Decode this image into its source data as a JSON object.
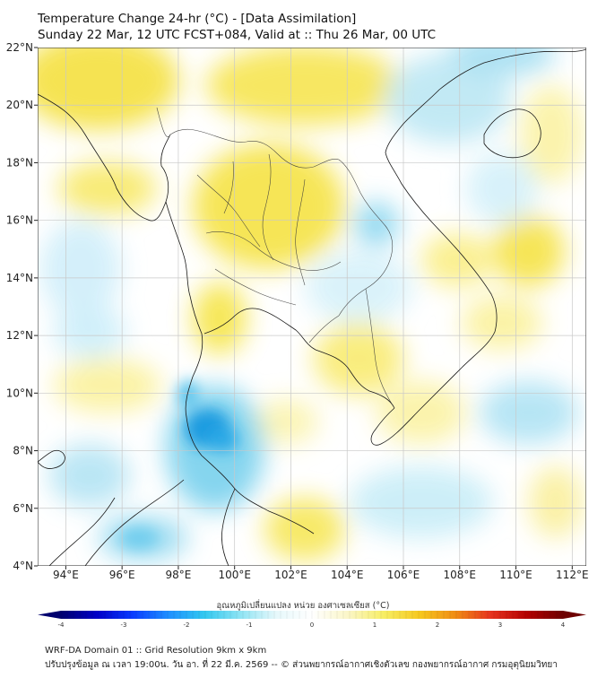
{
  "header": {
    "title_line1": "Temperature Change 24-hr (°C) - [Data Assimilation]",
    "title_line2": "Sunday 22 Mar, 12 UTC FCST+084, Valid at :: Thu 26 Mar, 00 UTC"
  },
  "map": {
    "lat_range": [
      4,
      22
    ],
    "lon_range": [
      93,
      112.5
    ],
    "lat_ticks": [
      "4°N",
      "6°N",
      "8°N",
      "10°N",
      "12°N",
      "14°N",
      "16°N",
      "18°N",
      "20°N",
      "22°N"
    ],
    "lon_ticks": [
      "94°E",
      "96°E",
      "98°E",
      "100°E",
      "102°E",
      "104°E",
      "106°E",
      "108°E",
      "110°E",
      "112°E"
    ],
    "gridlines": true,
    "colors": {
      "background": "#ffffff",
      "warm_light": "#fbf2a0",
      "warm": "#f5e24a",
      "cool_light": "#c8ecf6",
      "cool": "#7fd3ee",
      "cool_strong": "#1e9be0",
      "coastline": "#1a1a1a",
      "grid": "#c8c8c8"
    }
  },
  "colorbar": {
    "title": "อุณหภูมิเปลี่ยนแปลง หน่วย องศาเซลเซียส (°C)",
    "range": [
      -4,
      4
    ],
    "ticks": [
      "-4",
      "-3",
      "-2",
      "-1",
      "0",
      "1",
      "2",
      "3",
      "4"
    ],
    "extend": "both",
    "stops": [
      "#00006e",
      "#0000c8",
      "#0a3cff",
      "#1e90ff",
      "#32c8f0",
      "#8ee4f4",
      "#e6f8fb",
      "#ffffff",
      "#fbf6c8",
      "#f7ee64",
      "#f6c81e",
      "#f08c14",
      "#e6321e",
      "#b40000",
      "#6e0000"
    ]
  },
  "footer": {
    "line1": "WRF-DA Domain 01 :: Grid Resolution 9km x 9km",
    "line2": "ปรับปรุงข้อมูล ณ เวลา 19:00น. วัน อา. ที่ 22 มี.ค. 2569 -- © ส่วนพยากรณ์อากาศเชิงตัวเลข กองพยากรณ์อากาศ กรมอุตุนิยมวิทยา"
  }
}
